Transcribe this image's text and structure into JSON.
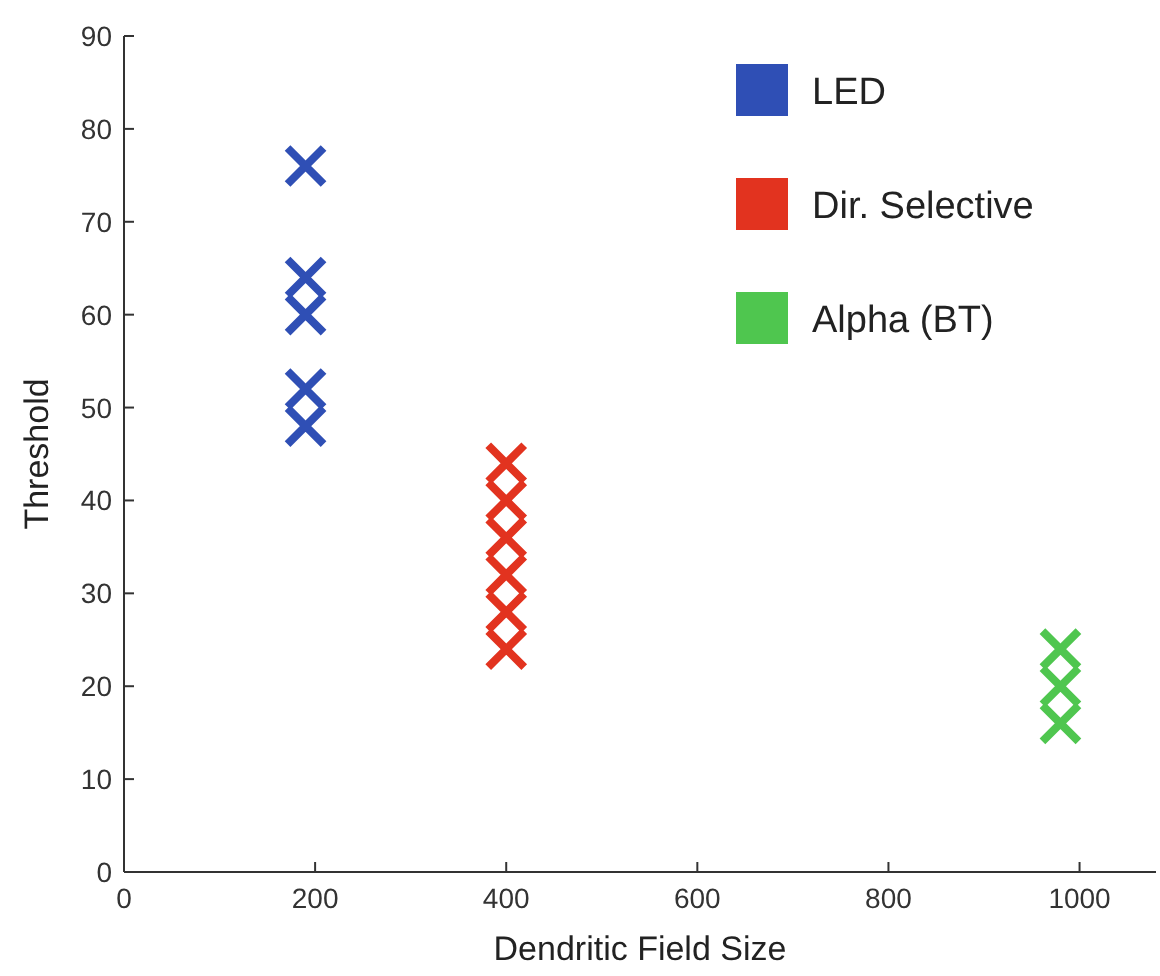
{
  "chart_data": {
    "type": "scatter",
    "xlabel": "Dendritic Field Size",
    "ylabel": "Threshold",
    "xlim": [
      0,
      1080
    ],
    "xticks": [
      0,
      200,
      400,
      600,
      800,
      1000
    ],
    "ylim": [
      0,
      90
    ],
    "yticks": [
      0,
      10,
      20,
      30,
      40,
      50,
      60,
      70,
      80,
      90
    ],
    "marker": "cross",
    "legend": "top right",
    "grid": false,
    "series": [
      {
        "name": "LED",
        "color": "#2f4fb5",
        "x": [
          190,
          190,
          190,
          190,
          190
        ],
        "values": [
          76,
          64,
          60,
          52,
          48
        ]
      },
      {
        "name": "Dir. Selective",
        "color": "#e2331f",
        "x": [
          400,
          400,
          400,
          400,
          400,
          400
        ],
        "values": [
          44,
          40,
          36,
          32,
          28,
          24
        ]
      },
      {
        "name": "Alpha (BT)",
        "color": "#4fc64f",
        "x": [
          980,
          980,
          980
        ],
        "values": [
          24,
          20,
          16
        ]
      }
    ]
  }
}
